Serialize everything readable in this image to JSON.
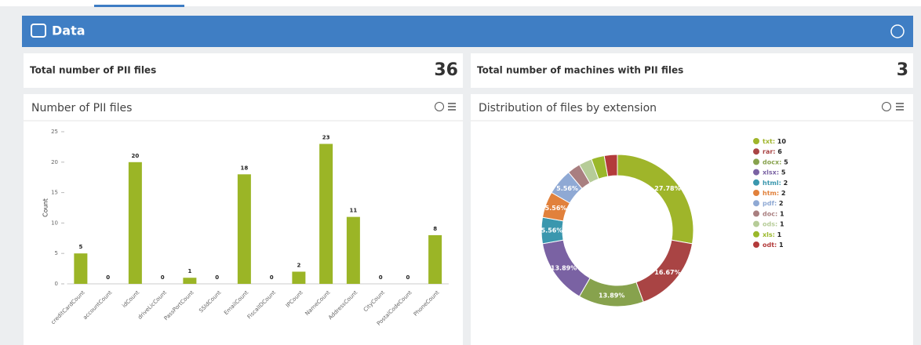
{
  "header": {
    "title": "Data"
  },
  "kpis": [
    {
      "label": "Total number of PII files",
      "value": 36
    },
    {
      "label": "Total number of machines with PII files",
      "value": 3
    }
  ],
  "chart_data": [
    {
      "type": "bar",
      "title": "Number of PII files",
      "y_label": "Count",
      "color": "#9bb526",
      "categories": [
        "creditCardCount",
        "accountCount",
        "idCount",
        "driveLicCount",
        "PassPortCount",
        "SSIdCount",
        "EmailCount",
        "FiscalIDCount",
        "IPCount",
        "NameCount",
        "AddressCount",
        "CityCount",
        "PostalCodeCount",
        "PhoneCount"
      ],
      "values": [
        5,
        0,
        20,
        0,
        1,
        0,
        18,
        0,
        2,
        23,
        11,
        0,
        0,
        8
      ],
      "ylim": [
        0,
        25
      ],
      "yticks": [
        0,
        5,
        10,
        15,
        20,
        25
      ]
    },
    {
      "type": "pie",
      "title": "Distribution of files by extension",
      "categories": [
        "txt",
        "rar",
        "docx",
        "xlsx",
        "html",
        "htm",
        "pdf",
        "doc",
        "ods",
        "xls",
        "odt"
      ],
      "values": [
        10,
        6,
        5,
        5,
        2,
        2,
        2,
        1,
        1,
        1,
        1
      ],
      "colors": [
        "#9fb52a",
        "#a94444",
        "#87a24d",
        "#7a62a3",
        "#3a97ae",
        "#e1813c",
        "#8fa9d4",
        "#a97f80",
        "#b6cc98",
        "#9ab82a",
        "#b33b3b"
      ],
      "slice_labels": [
        "27.78%",
        "16.67%",
        "13.89%",
        "13.89%",
        "5.56%",
        "5.56%",
        "5.56%",
        null,
        null,
        null,
        null
      ]
    }
  ]
}
